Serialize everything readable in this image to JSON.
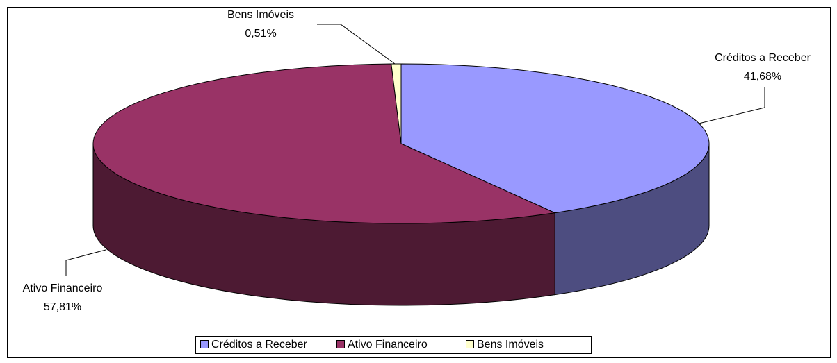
{
  "chart_data": {
    "type": "pie3d",
    "categories": [
      "Créditos a Receber",
      "Ativo Financeiro",
      "Bens Imóveis"
    ],
    "values": [
      41.68,
      57.81,
      0.51
    ],
    "value_labels": [
      "41,68%",
      "57,81%",
      "0,51%"
    ],
    "colors": [
      "#9999ff",
      "#993366",
      "#ffffcc"
    ],
    "legend": "bottom"
  }
}
